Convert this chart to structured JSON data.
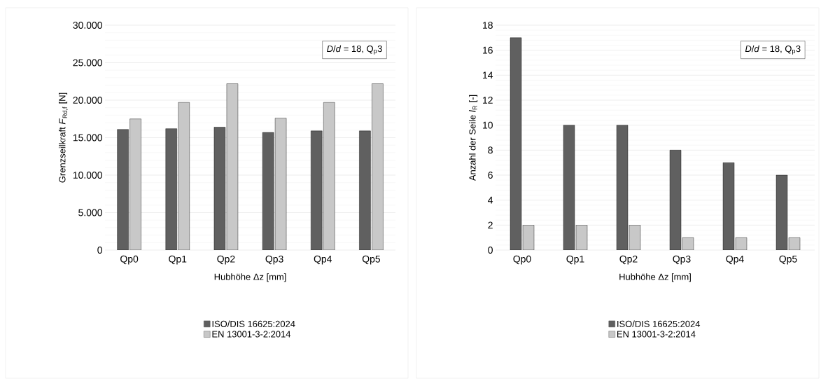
{
  "chart_data": [
    {
      "type": "bar",
      "categories": [
        "Qp0",
        "Qp1",
        "Qp2",
        "Qp3",
        "Qp4",
        "Qp5"
      ],
      "series": [
        {
          "name": "ISO/DIS 16625:2024",
          "color": "#606060",
          "values": [
            16100,
            16200,
            16400,
            15700,
            15900,
            15900
          ]
        },
        {
          "name": "EN 13001-3-2:2014",
          "color": "#c8c8c8",
          "values": [
            17500,
            19700,
            22200,
            17600,
            19700,
            22200
          ]
        }
      ],
      "xlabel": "Hubhöhe Δz [mm]",
      "ylabel": "Grenzseilkraft *F*$_{Rd,f}$ [N]",
      "ylim": [
        0,
        30000
      ],
      "yticks": [
        {
          "value": 0,
          "label": "0"
        },
        {
          "value": 5000,
          "label": "5.000"
        },
        {
          "value": 10000,
          "label": "10.000"
        },
        {
          "value": 15000,
          "label": "15.000"
        },
        {
          "value": 20000,
          "label": "20.000"
        },
        {
          "value": 25000,
          "label": "25.000"
        },
        {
          "value": 30000,
          "label": "30.000"
        }
      ],
      "annotations": [
        "*D*/*d* = 18, Q$_{p}$3"
      ],
      "grid": "y",
      "legend": "bottom"
    },
    {
      "type": "bar",
      "categories": [
        "Qp0",
        "Qp1",
        "Qp2",
        "Qp3",
        "Qp4",
        "Qp5"
      ],
      "series": [
        {
          "name": "ISO/DIS 16625:2024",
          "color": "#606060",
          "values": [
            17,
            10,
            10,
            8,
            7,
            6
          ]
        },
        {
          "name": "EN 13001-3-2:2014",
          "color": "#c8c8c8",
          "values": [
            2,
            2,
            2,
            1,
            1,
            1
          ]
        }
      ],
      "xlabel": "Hubhöhe Δz [mm]",
      "ylabel": "Anzahl der Seile *l*$_{R}$ [-]",
      "ylim": [
        0,
        18
      ],
      "yticks": [
        0,
        2,
        4,
        6,
        8,
        10,
        12,
        14,
        16,
        18
      ],
      "annotations": [
        "*D*/*d* = 18, Q$_{p}$3"
      ],
      "grid": "y",
      "legend": "bottom"
    }
  ]
}
